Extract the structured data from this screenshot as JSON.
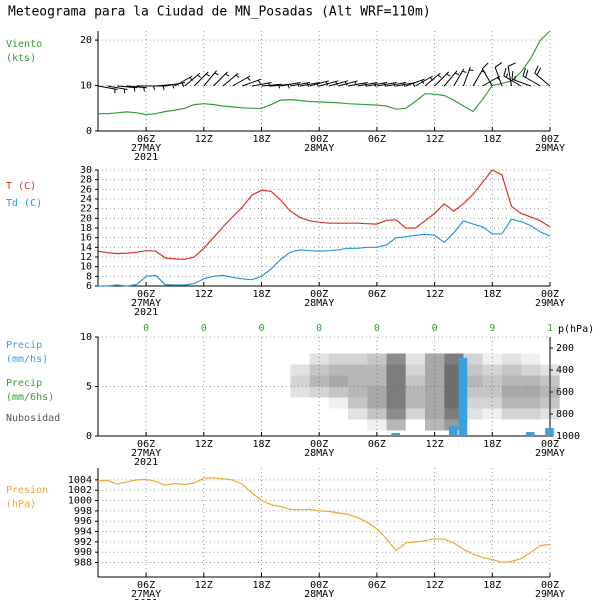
{
  "title": "Meteograma para la Ciudad de MN_Posadas (Alt WRF=110m)",
  "time_axis": {
    "x": [
      1,
      2,
      3,
      4,
      5,
      6,
      7,
      8,
      9,
      10,
      11,
      12,
      13,
      14,
      15,
      16,
      17,
      18,
      19,
      20,
      21,
      22,
      23,
      24,
      25,
      26,
      27,
      28,
      29,
      30,
      31,
      32,
      33,
      34,
      35,
      36,
      37,
      38,
      39,
      40,
      41,
      42,
      43,
      44,
      45,
      46,
      47,
      48
    ],
    "xlim": [
      1,
      48
    ],
    "xticks": [
      {
        "value": 6,
        "label": "06Z"
      },
      {
        "value": 12,
        "label": "12Z"
      },
      {
        "value": 18,
        "label": "18Z"
      },
      {
        "value": 24,
        "label": "00Z"
      },
      {
        "value": 30,
        "label": "06Z"
      },
      {
        "value": 36,
        "label": "12Z"
      },
      {
        "value": 42,
        "label": "18Z"
      },
      {
        "value": 48,
        "label": "00Z"
      }
    ],
    "dates": [
      {
        "value": 6,
        "label": "27MAY"
      },
      {
        "value": 24,
        "label": "28MAY"
      },
      {
        "value": 48,
        "label": "29MAY"
      }
    ],
    "year": {
      "value": 6,
      "label": "2021"
    }
  },
  "chart_data": [
    {
      "type": "wind",
      "ylim": [
        0,
        22
      ],
      "yticks": [
        0,
        10,
        20
      ],
      "grid": true,
      "barb_color": "#000000",
      "series": [
        {
          "name": "Viento",
          "unit": "(kts)",
          "color": "#33a033",
          "values": [
            3.8,
            3.8,
            4.0,
            4.2,
            4.0,
            3.6,
            3.8,
            4.3,
            4.6,
            5.0,
            5.8,
            6.0,
            5.8,
            5.5,
            5.3,
            5.1,
            5.0,
            5.0,
            5.8,
            6.8,
            6.9,
            6.7,
            6.5,
            6.4,
            6.3,
            6.2,
            6.0,
            5.9,
            5.8,
            5.7,
            5.5,
            4.8,
            5.0,
            6.5,
            8.2,
            8.1,
            7.8,
            6.8,
            5.5,
            4.3,
            7.0,
            10.0,
            10.5,
            11.0,
            13.0,
            16.0,
            20.0,
            22.0
          ]
        }
      ],
      "direction": [
        100,
        100,
        95,
        95,
        90,
        90,
        85,
        80,
        60,
        50,
        45,
        40,
        45,
        50,
        60,
        70,
        80,
        85,
        85,
        80,
        80,
        80,
        75,
        75,
        75,
        75,
        80,
        80,
        80,
        80,
        80,
        80,
        70,
        60,
        50,
        45,
        40,
        30,
        20,
        30,
        60,
        330,
        340,
        350,
        300,
        290,
        300,
        310
      ]
    },
    {
      "type": "line",
      "ylim": [
        6,
        30
      ],
      "yticks": [
        6,
        8,
        10,
        12,
        14,
        16,
        18,
        20,
        22,
        24,
        26,
        28,
        30
      ],
      "grid": true,
      "series": [
        {
          "name": "T (C)",
          "color": "#dd3322",
          "values": [
            13.2,
            12.9,
            12.7,
            12.8,
            13.0,
            13.3,
            13.2,
            11.8,
            11.6,
            11.5,
            12.0,
            13.8,
            16.0,
            18.2,
            20.3,
            22.3,
            24.8,
            25.8,
            25.6,
            23.8,
            21.5,
            20.2,
            19.5,
            19.2,
            19.0,
            19.0,
            19.0,
            19.0,
            18.9,
            18.8,
            19.6,
            19.7,
            18.0,
            18.0,
            19.5,
            21.0,
            23.0,
            21.5,
            23.0,
            25.0,
            27.5,
            30.0,
            29.0,
            22.5,
            21.0,
            20.3,
            19.5,
            18.2
          ]
        },
        {
          "name": "Td (C)",
          "color": "#2299dd",
          "values": [
            6.0,
            6.0,
            6.2,
            6.0,
            6.3,
            8.0,
            8.2,
            6.3,
            6.2,
            6.2,
            6.5,
            7.5,
            8.0,
            8.2,
            7.8,
            7.5,
            7.3,
            8.0,
            9.5,
            11.5,
            13.0,
            13.5,
            13.3,
            13.2,
            13.3,
            13.5,
            13.8,
            13.8,
            14.0,
            14.0,
            14.5,
            16.0,
            16.2,
            16.5,
            16.7,
            16.5,
            15.0,
            17.0,
            19.5,
            18.8,
            18.2,
            16.8,
            16.8,
            19.8,
            19.3,
            18.5,
            17.2,
            16.3
          ]
        }
      ]
    },
    {
      "type": "precip",
      "ylim": [
        0,
        10
      ],
      "yticks": [
        0,
        5,
        10
      ],
      "grid": true,
      "y2lim": [
        1000,
        100
      ],
      "y2ticks": [
        200,
        400,
        600,
        800,
        1000
      ],
      "y2label": "p(hPa)",
      "series": [
        {
          "name": "Precip",
          "unit": "(mm/hs)",
          "color": "#3aa0e0",
          "x": [
            32,
            38,
            39,
            46,
            48
          ],
          "values": [
            0.3,
            1.0,
            7.9,
            0.4,
            0.8
          ]
        },
        {
          "name": "Precip",
          "unit": "(mm/6hs)",
          "color": "#33a033",
          "x": [
            6,
            12,
            18,
            24,
            30,
            36,
            42,
            48
          ],
          "values": [
            0,
            0,
            0,
            0,
            0,
            0,
            9,
            1
          ]
        },
        {
          "name": "Nubosidad",
          "color": "#555555",
          "axis": "y2",
          "hours": [
            22,
            24,
            26,
            28,
            30,
            32,
            34,
            36,
            38,
            40,
            42,
            44,
            46,
            48
          ],
          "levels": [
            300,
            400,
            500,
            600,
            700,
            800,
            900
          ],
          "values": [
            [
              0,
              0.2,
              0.3,
              0.2,
              0,
              0,
              0
            ],
            [
              0.2,
              0.4,
              0.5,
              0.3,
              0,
              0,
              0
            ],
            [
              0.3,
              0.5,
              0.6,
              0.4,
              0.1,
              0,
              0
            ],
            [
              0.3,
              0.5,
              0.5,
              0.5,
              0.4,
              0.2,
              0
            ],
            [
              0.4,
              0.5,
              0.5,
              0.6,
              0.6,
              0.4,
              0.1
            ],
            [
              0.8,
              0.9,
              0.9,
              0.9,
              0.9,
              0.8,
              0.5
            ],
            [
              0.2,
              0.3,
              0.4,
              0.5,
              0.5,
              0.3,
              0
            ],
            [
              0.6,
              0.6,
              0.6,
              0.6,
              0.6,
              0.6,
              0.5
            ],
            [
              0.9,
              1,
              1,
              1,
              1,
              0.9,
              0.7
            ],
            [
              0.3,
              0.4,
              0.5,
              0.4,
              0.3,
              0.2,
              0
            ],
            [
              0.1,
              0.3,
              0.4,
              0.4,
              0.3,
              0.1,
              0
            ],
            [
              0.2,
              0.4,
              0.5,
              0.6,
              0.5,
              0.3,
              0
            ],
            [
              0.1,
              0.3,
              0.5,
              0.6,
              0.5,
              0.3,
              0
            ],
            [
              0,
              0.2,
              0.4,
              0.5,
              0.4,
              0.2,
              0
            ]
          ]
        }
      ]
    },
    {
      "type": "line",
      "ylim": [
        985.2,
        1006.3
      ],
      "yticks": [
        988,
        990,
        992,
        994,
        996,
        998,
        1000,
        1002,
        1004
      ],
      "grid": true,
      "series": [
        {
          "name": "Presion",
          "unit": "(hPa)",
          "color": "#f0a830",
          "values": [
            1003.8,
            1003.9,
            1003.2,
            1003.6,
            1004.0,
            1004.1,
            1003.7,
            1003.0,
            1003.3,
            1003.1,
            1003.4,
            1004.3,
            1004.4,
            1004.2,
            1004.0,
            1003.2,
            1001.5,
            1000.0,
            999.2,
            998.8,
            998.3,
            998.2,
            998.3,
            998.0,
            997.9,
            997.6,
            997.3,
            996.7,
            995.8,
            994.5,
            992.6,
            990.3,
            991.8,
            992.0,
            992.2,
            992.6,
            992.5,
            991.8,
            990.6,
            989.6,
            989.0,
            988.6,
            988.0,
            988.2,
            988.8,
            990.0,
            991.3,
            991.5
          ]
        }
      ]
    }
  ]
}
